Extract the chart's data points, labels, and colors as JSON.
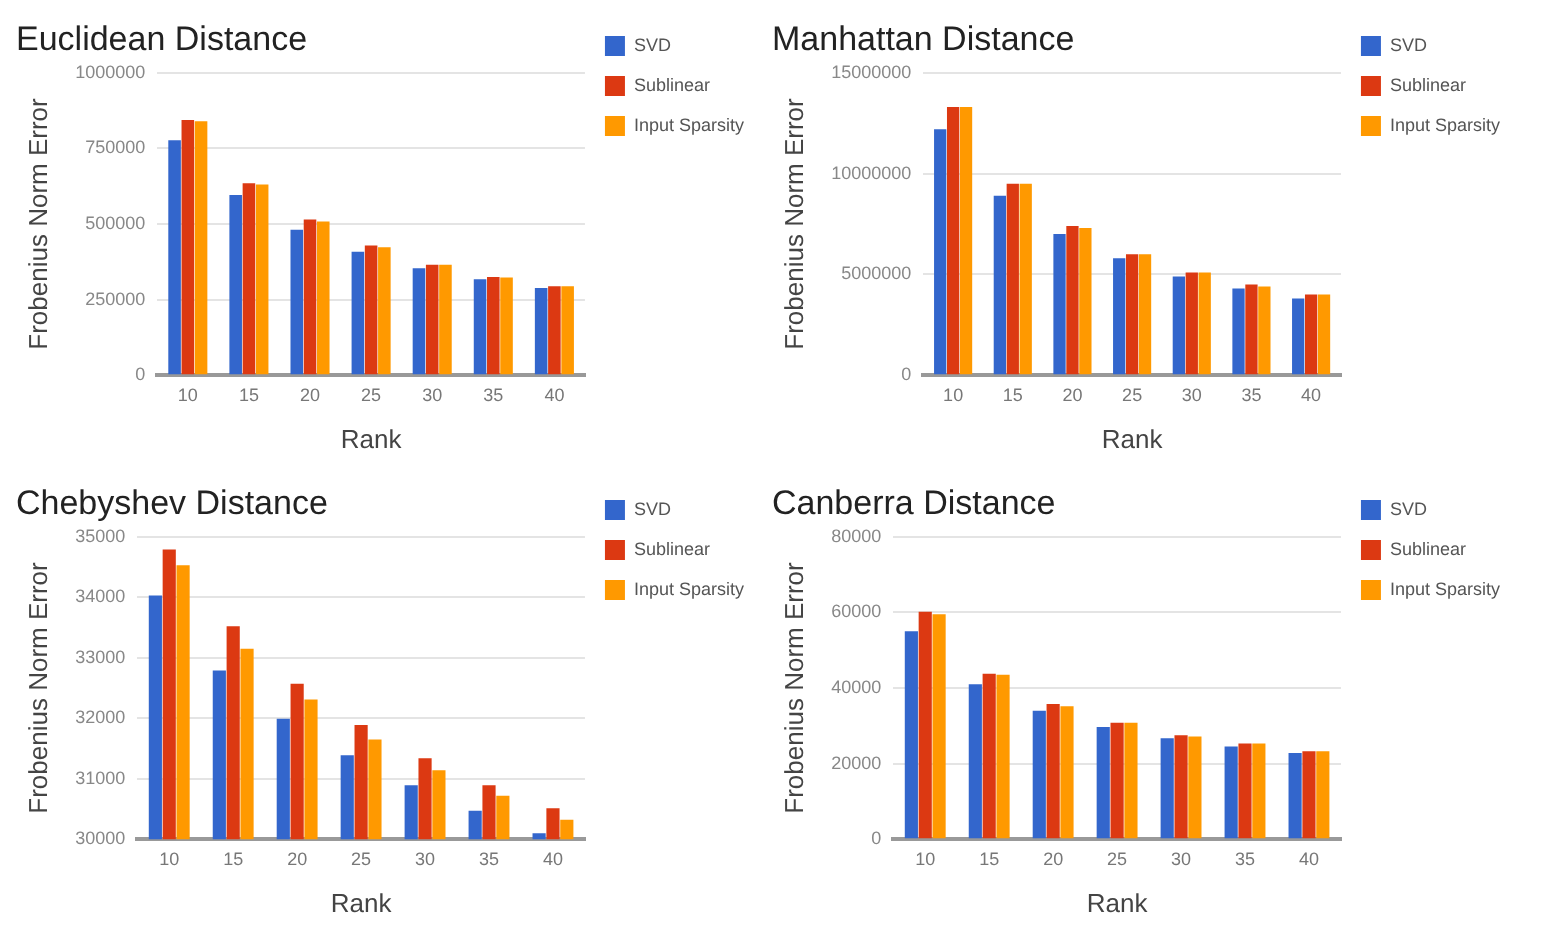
{
  "chart_data": [
    {
      "type": "bar",
      "title": "Euclidean Distance",
      "xlabel": "Rank",
      "ylabel": "Frobenius Norm Error",
      "categories": [
        "10",
        "15",
        "20",
        "25",
        "30",
        "35",
        "40"
      ],
      "series": [
        {
          "name": "SVD",
          "color": "#3366cc",
          "values": [
            777000,
            596000,
            481000,
            408000,
            354000,
            317000,
            288000
          ]
        },
        {
          "name": "Sublinear",
          "color": "#dc3912",
          "values": [
            844000,
            635000,
            515000,
            429000,
            365000,
            325000,
            294000
          ]
        },
        {
          "name": "Input Sparsity",
          "color": "#ff9900",
          "values": [
            840000,
            631000,
            508000,
            423000,
            365000,
            323000,
            294000
          ]
        }
      ],
      "ylim": [
        0,
        1000000
      ],
      "yticks": [
        0,
        250000,
        500000,
        750000,
        1000000
      ],
      "grid": "y",
      "legend": "right"
    },
    {
      "type": "bar",
      "title": "Manhattan Distance",
      "xlabel": "Rank",
      "ylabel": "Frobenius Norm Error",
      "categories": [
        "10",
        "15",
        "20",
        "25",
        "30",
        "35",
        "40"
      ],
      "series": [
        {
          "name": "SVD",
          "color": "#3366cc",
          "values": [
            12200000,
            8900000,
            7000000,
            5800000,
            4900000,
            4300000,
            3800000
          ]
        },
        {
          "name": "Sublinear",
          "color": "#dc3912",
          "values": [
            13300000,
            9500000,
            7400000,
            6000000,
            5100000,
            4500000,
            4000000
          ]
        },
        {
          "name": "Input Sparsity",
          "color": "#ff9900",
          "values": [
            13300000,
            9500000,
            7300000,
            6000000,
            5100000,
            4400000,
            4000000
          ]
        }
      ],
      "ylim": [
        0,
        15000000
      ],
      "yticks": [
        0,
        5000000,
        10000000,
        15000000
      ],
      "grid": "y",
      "legend": "right"
    },
    {
      "type": "bar",
      "title": "Chebyshev Distance",
      "xlabel": "Rank",
      "ylabel": "Frobenius Norm Error",
      "categories": [
        "10",
        "15",
        "20",
        "25",
        "30",
        "35",
        "40"
      ],
      "series": [
        {
          "name": "SVD",
          "color": "#3366cc",
          "values": [
            34030,
            32790,
            31990,
            31390,
            30890,
            30470,
            30100
          ]
        },
        {
          "name": "Sublinear",
          "color": "#dc3912",
          "values": [
            34790,
            33520,
            32570,
            31890,
            31340,
            30890,
            30510
          ]
        },
        {
          "name": "Input Sparsity",
          "color": "#ff9900",
          "values": [
            34530,
            33150,
            32310,
            31650,
            31140,
            30720,
            30320
          ]
        }
      ],
      "ylim": [
        30000,
        35000
      ],
      "yticks": [
        30000,
        31000,
        32000,
        33000,
        34000,
        35000
      ],
      "grid": "y",
      "legend": "right"
    },
    {
      "type": "bar",
      "title": "Canberra Distance",
      "xlabel": "Rank",
      "ylabel": "Frobenius Norm Error",
      "categories": [
        "10",
        "15",
        "20",
        "25",
        "30",
        "35",
        "40"
      ],
      "series": [
        {
          "name": "SVD",
          "color": "#3366cc",
          "values": [
            55000,
            41000,
            34000,
            29700,
            26700,
            24500,
            22800
          ]
        },
        {
          "name": "Sublinear",
          "color": "#dc3912",
          "values": [
            60200,
            43800,
            35800,
            30800,
            27500,
            25300,
            23300
          ]
        },
        {
          "name": "Input Sparsity",
          "color": "#ff9900",
          "values": [
            59500,
            43500,
            35200,
            30800,
            27200,
            25300,
            23300
          ]
        }
      ],
      "ylim": [
        0,
        80000
      ],
      "yticks": [
        0,
        20000,
        40000,
        60000,
        80000
      ],
      "grid": "y",
      "legend": "right"
    }
  ]
}
